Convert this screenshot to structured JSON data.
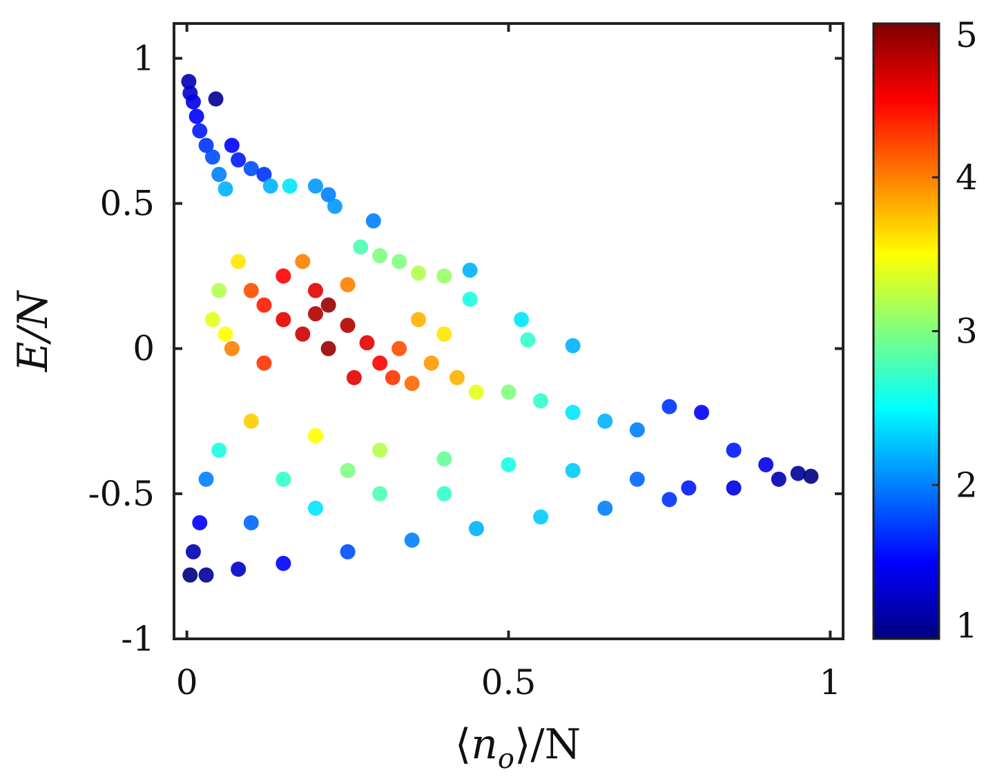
{
  "chart_data": {
    "type": "scatter",
    "title": "",
    "xlabel": "⟨n_o⟩/N",
    "xlabel_parts": {
      "open": "⟨",
      "var": "n",
      "sub": "o",
      "close": "⟩/N"
    },
    "ylabel": "E/N",
    "xlim": [
      -0.02,
      1.02
    ],
    "ylim": [
      -1,
      1.12
    ],
    "x_ticks": [
      0,
      0.5,
      1
    ],
    "x_tick_labels": [
      "0",
      "0.5",
      "1"
    ],
    "y_ticks": [
      -1,
      -0.5,
      0,
      0.5,
      1
    ],
    "y_tick_labels": [
      "-1",
      "-0.5",
      "0",
      "0.5",
      "1"
    ],
    "colorbar": {
      "min": 1,
      "max": 5,
      "ticks": [
        1,
        2,
        3,
        4,
        5
      ],
      "tick_labels": [
        "1",
        "2",
        "3",
        "4",
        "5"
      ],
      "colormap": "jet"
    },
    "grid": false,
    "legend": "none",
    "series": [
      {
        "points": [
          [
            0.003,
            0.92,
            1.2
          ],
          [
            0.005,
            0.88,
            1.3
          ],
          [
            0.01,
            0.85,
            1.4
          ],
          [
            0.015,
            0.8,
            1.5
          ],
          [
            0.02,
            0.75,
            1.6
          ],
          [
            0.03,
            0.7,
            1.7
          ],
          [
            0.04,
            0.66,
            1.8
          ],
          [
            0.045,
            0.86,
            1.1
          ],
          [
            0.05,
            0.6,
            2.0
          ],
          [
            0.06,
            0.55,
            2.2
          ],
          [
            0.07,
            0.7,
            1.5
          ],
          [
            0.08,
            0.65,
            1.6
          ],
          [
            0.1,
            0.62,
            1.8
          ],
          [
            0.12,
            0.6,
            1.7
          ],
          [
            0.13,
            0.56,
            2.2
          ],
          [
            0.16,
            0.56,
            2.4
          ],
          [
            0.2,
            0.56,
            2.1
          ],
          [
            0.22,
            0.53,
            2.0
          ],
          [
            0.23,
            0.49,
            2.1
          ],
          [
            0.29,
            0.44,
            2.0
          ],
          [
            0.27,
            0.35,
            2.8
          ],
          [
            0.3,
            0.32,
            3.0
          ],
          [
            0.33,
            0.3,
            3.0
          ],
          [
            0.36,
            0.26,
            3.2
          ],
          [
            0.4,
            0.25,
            3.1
          ],
          [
            0.44,
            0.27,
            2.2
          ],
          [
            0.44,
            0.17,
            2.6
          ],
          [
            0.52,
            0.1,
            2.4
          ],
          [
            0.53,
            0.03,
            2.7
          ],
          [
            0.6,
            0.01,
            2.2
          ],
          [
            0.04,
            0.1,
            3.4
          ],
          [
            0.06,
            0.05,
            3.5
          ],
          [
            0.07,
            0.0,
            4.0
          ],
          [
            0.05,
            0.2,
            3.2
          ],
          [
            0.08,
            0.3,
            3.6
          ],
          [
            0.1,
            0.2,
            4.2
          ],
          [
            0.12,
            0.15,
            4.4
          ],
          [
            0.15,
            0.1,
            4.6
          ],
          [
            0.18,
            0.05,
            4.7
          ],
          [
            0.2,
            0.12,
            4.8
          ],
          [
            0.22,
            0.0,
            4.9
          ],
          [
            0.25,
            0.08,
            4.8
          ],
          [
            0.28,
            0.02,
            4.6
          ],
          [
            0.3,
            -0.05,
            4.5
          ],
          [
            0.32,
            -0.1,
            4.3
          ],
          [
            0.35,
            -0.12,
            4.1
          ],
          [
            0.38,
            -0.05,
            3.9
          ],
          [
            0.4,
            0.05,
            3.6
          ],
          [
            0.42,
            -0.1,
            3.8
          ],
          [
            0.45,
            -0.15,
            3.4
          ],
          [
            0.5,
            -0.15,
            3.0
          ],
          [
            0.55,
            -0.18,
            2.7
          ],
          [
            0.6,
            -0.22,
            2.4
          ],
          [
            0.65,
            -0.25,
            2.2
          ],
          [
            0.7,
            -0.28,
            2.0
          ],
          [
            0.75,
            -0.2,
            1.7
          ],
          [
            0.8,
            -0.22,
            1.5
          ],
          [
            0.85,
            -0.35,
            1.6
          ],
          [
            0.9,
            -0.4,
            1.4
          ],
          [
            0.95,
            -0.43,
            1.1
          ],
          [
            0.97,
            -0.44,
            1.0
          ],
          [
            0.92,
            -0.45,
            1.2
          ],
          [
            0.85,
            -0.48,
            1.4
          ],
          [
            0.78,
            -0.48,
            1.6
          ],
          [
            0.7,
            -0.45,
            1.9
          ],
          [
            0.6,
            -0.42,
            2.3
          ],
          [
            0.5,
            -0.4,
            2.6
          ],
          [
            0.4,
            -0.38,
            2.9
          ],
          [
            0.3,
            -0.35,
            3.2
          ],
          [
            0.2,
            -0.3,
            3.5
          ],
          [
            0.1,
            -0.25,
            3.7
          ],
          [
            0.05,
            -0.35,
            2.6
          ],
          [
            0.03,
            -0.45,
            2.0
          ],
          [
            0.02,
            -0.6,
            1.5
          ],
          [
            0.01,
            -0.7,
            1.2
          ],
          [
            0.005,
            -0.78,
            1.0
          ],
          [
            0.03,
            -0.78,
            1.1
          ],
          [
            0.08,
            -0.76,
            1.3
          ],
          [
            0.15,
            -0.74,
            1.5
          ],
          [
            0.25,
            -0.7,
            1.8
          ],
          [
            0.35,
            -0.66,
            2.0
          ],
          [
            0.45,
            -0.62,
            2.2
          ],
          [
            0.55,
            -0.58,
            2.3
          ],
          [
            0.65,
            -0.55,
            2.0
          ],
          [
            0.75,
            -0.52,
            1.7
          ],
          [
            0.1,
            -0.6,
            1.9
          ],
          [
            0.2,
            -0.55,
            2.4
          ],
          [
            0.3,
            -0.5,
            2.8
          ],
          [
            0.4,
            -0.5,
            2.7
          ],
          [
            0.15,
            -0.45,
            2.7
          ],
          [
            0.25,
            -0.42,
            3.0
          ],
          [
            0.12,
            -0.05,
            4.3
          ],
          [
            0.15,
            0.25,
            4.5
          ],
          [
            0.2,
            0.2,
            4.6
          ],
          [
            0.25,
            0.22,
            4.0
          ],
          [
            0.18,
            0.3,
            4.0
          ],
          [
            0.22,
            0.15,
            4.9
          ],
          [
            0.26,
            -0.1,
            4.6
          ],
          [
            0.33,
            0.0,
            4.2
          ],
          [
            0.36,
            0.1,
            3.8
          ]
        ]
      }
    ]
  }
}
